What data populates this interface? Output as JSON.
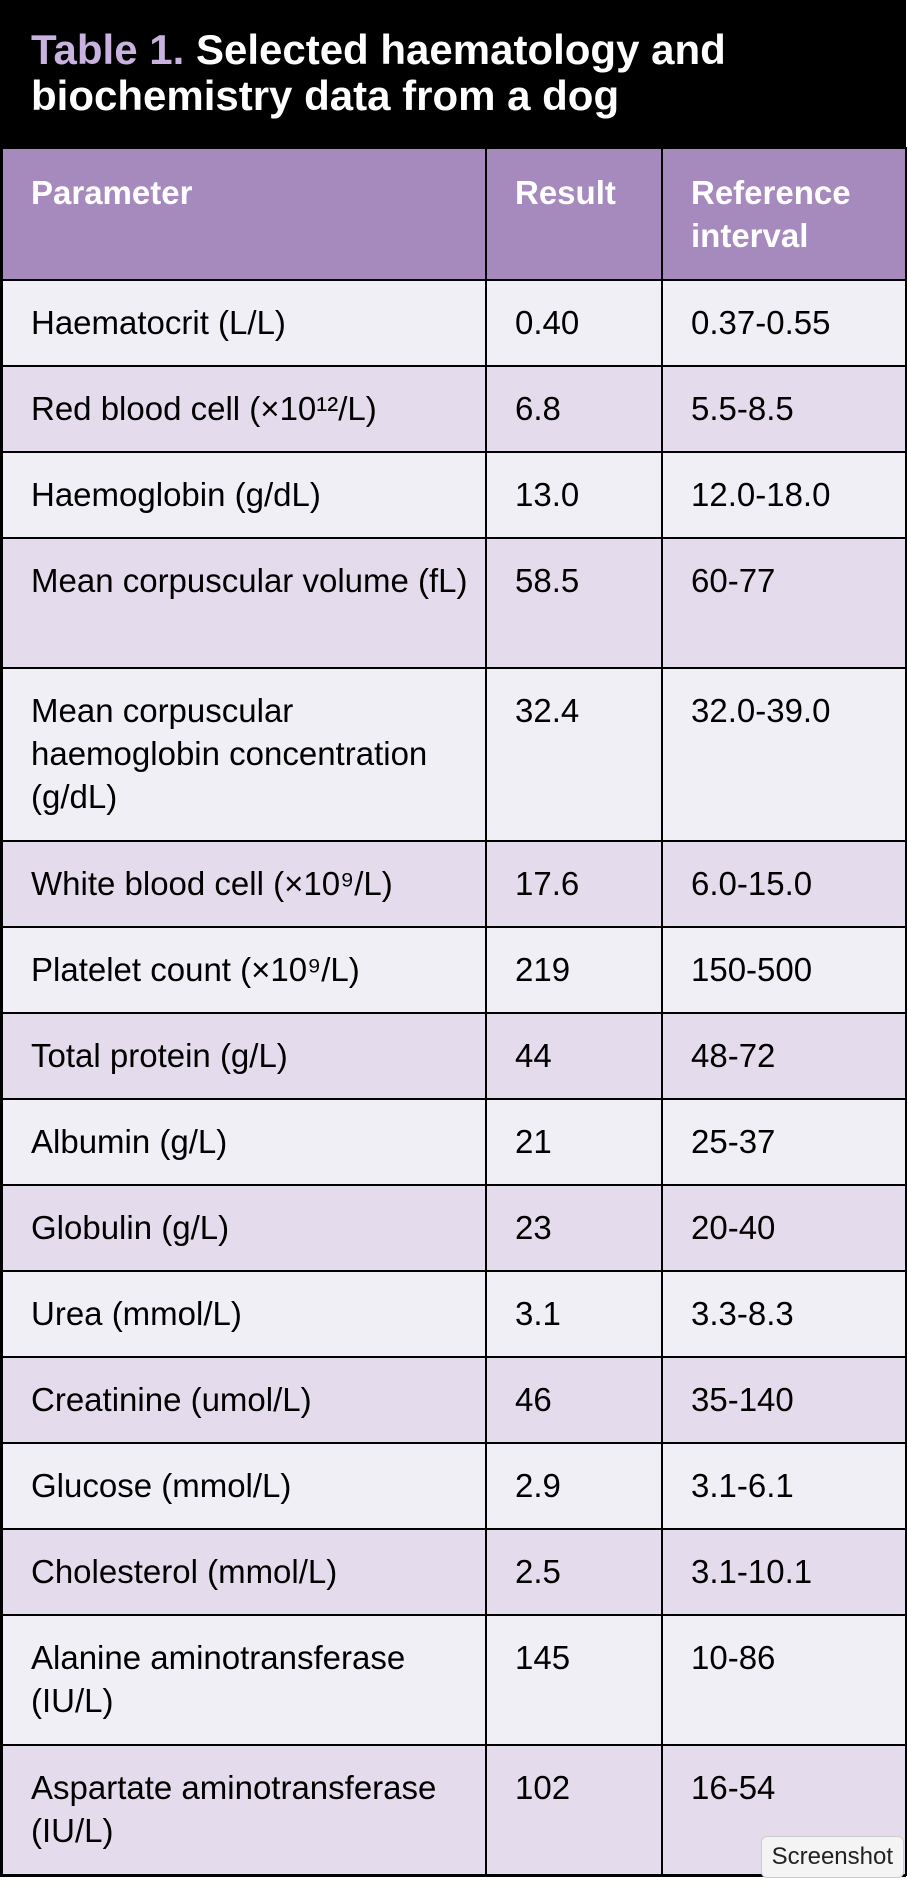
{
  "header": {
    "label": "Table 1.",
    "title": "Selected haematology and biochemistry data from a dog"
  },
  "table": {
    "columns": [
      "Parameter",
      "Result",
      "Reference interval"
    ],
    "rows": [
      [
        "Haematocrit (L/L)",
        "0.40",
        "0.37-0.55"
      ],
      [
        "Red blood cell (×10¹²/L)",
        "6.8",
        "5.5-8.5"
      ],
      [
        "Haemoglobin (g/dL)",
        "13.0",
        "12.0-18.0"
      ],
      [
        "Mean corpuscular volume (fL)",
        "58.5",
        "60-77"
      ],
      [
        "Mean corpuscular haemoglobin concentration (g/dL)",
        "32.4",
        "32.0-39.0"
      ],
      [
        "White blood cell (×10⁹/L)",
        "17.6",
        "6.0-15.0"
      ],
      [
        "Platelet count (×10⁹/L)",
        "219",
        "150-500"
      ],
      [
        "Total protein (g/L)",
        "44",
        "48-72"
      ],
      [
        "Albumin (g/L)",
        "21",
        "25-37"
      ],
      [
        "Globulin (g/L)",
        "23",
        "20-40"
      ],
      [
        "Urea (mmol/L)",
        "3.1",
        "3.3-8.3"
      ],
      [
        "Creatinine (umol/L)",
        "46",
        "35-140"
      ],
      [
        "Glucose (mmol/L)",
        "2.9",
        "3.1-6.1"
      ],
      [
        "Cholesterol (mmol/L)",
        "2.5",
        "3.1-10.1"
      ],
      [
        "Alanine aminotransferase (IU/L)",
        "145",
        "10-86"
      ],
      [
        "Aspartate aminotransferase (IU/L)",
        "102",
        "16-54"
      ]
    ]
  },
  "overlay": "Screenshot"
}
